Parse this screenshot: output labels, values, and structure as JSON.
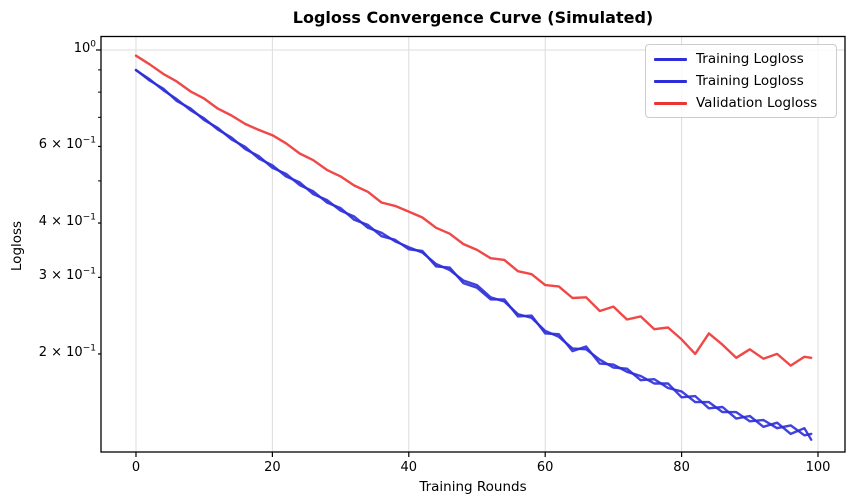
{
  "figure": {
    "title": "Logloss Convergence Curve (Simulated)",
    "xlabel": "Training Rounds",
    "ylabel": "Logloss"
  },
  "chart_data": {
    "type": "line",
    "title": "Logloss Convergence Curve (Simulated)",
    "xlabel": "Training Rounds",
    "ylabel": "Logloss",
    "x_scale": "linear",
    "y_scale": "log",
    "xlim": [
      -5.13,
      103.96
    ],
    "ylim": [
      0.119,
      1.074
    ],
    "xticks": [
      0,
      20,
      40,
      60,
      80,
      100
    ],
    "yticks_labeled": [
      {
        "value": 1.0,
        "prefix": "10",
        "sup": "0",
        "major": true
      },
      {
        "value": 0.6,
        "prefix": "6 × 10",
        "sup": "−1",
        "major": false
      },
      {
        "value": 0.4,
        "prefix": "4 × 10",
        "sup": "−1",
        "major": false
      },
      {
        "value": 0.3,
        "prefix": "3 × 10",
        "sup": "−1",
        "major": false
      },
      {
        "value": 0.2,
        "prefix": "2 × 10",
        "sup": "−1",
        "major": false
      }
    ],
    "yticks_unlabeled": [
      0.9,
      0.8,
      0.7,
      0.5
    ],
    "grid": {
      "vertical_at_xticks": true,
      "horizontal_at": [
        1.0
      ],
      "color": "#dcdcdc"
    },
    "legend_position": "upper right",
    "colors": {
      "training": "#2d2dd9",
      "validation": "#ee3433"
    },
    "x": [
      0,
      2,
      4,
      6,
      8,
      10,
      12,
      14,
      16,
      18,
      20,
      22,
      24,
      26,
      28,
      30,
      32,
      34,
      36,
      38,
      40,
      42,
      44,
      46,
      48,
      50,
      52,
      54,
      56,
      58,
      60,
      62,
      64,
      66,
      68,
      70,
      72,
      74,
      76,
      78,
      80,
      82,
      84,
      86,
      88,
      90,
      92,
      94,
      96,
      98,
      99
    ],
    "series": [
      {
        "name": "Training Logloss",
        "color": "#2d2dd9",
        "values": [
          0.9,
          0.851,
          0.815,
          0.763,
          0.734,
          0.69,
          0.662,
          0.623,
          0.599,
          0.563,
          0.543,
          0.512,
          0.496,
          0.466,
          0.452,
          0.427,
          0.414,
          0.39,
          0.38,
          0.363,
          0.352,
          0.342,
          0.322,
          0.312,
          0.295,
          0.288,
          0.27,
          0.264,
          0.247,
          0.242,
          0.226,
          0.219,
          0.206,
          0.205,
          0.194,
          0.186,
          0.185,
          0.174,
          0.175,
          0.167,
          0.164,
          0.155,
          0.155,
          0.147,
          0.147,
          0.14,
          0.141,
          0.135,
          0.137,
          0.13,
          0.131
        ]
      },
      {
        "name": "Training Logloss",
        "color": "#2d2dd9",
        "values": [
          0.898,
          0.856,
          0.808,
          0.77,
          0.727,
          0.696,
          0.656,
          0.629,
          0.592,
          0.57,
          0.536,
          0.519,
          0.489,
          0.473,
          0.446,
          0.433,
          0.407,
          0.396,
          0.373,
          0.366,
          0.348,
          0.345,
          0.318,
          0.316,
          0.291,
          0.284,
          0.267,
          0.267,
          0.244,
          0.245,
          0.223,
          0.222,
          0.203,
          0.208,
          0.19,
          0.189,
          0.182,
          0.178,
          0.171,
          0.171,
          0.159,
          0.16,
          0.15,
          0.151,
          0.142,
          0.144,
          0.136,
          0.139,
          0.131,
          0.135,
          0.127
        ]
      },
      {
        "name": "Validation Logloss",
        "color": "#ee3433",
        "values": [
          0.97,
          0.927,
          0.881,
          0.846,
          0.803,
          0.773,
          0.733,
          0.707,
          0.676,
          0.655,
          0.637,
          0.61,
          0.578,
          0.558,
          0.53,
          0.512,
          0.488,
          0.472,
          0.446,
          0.438,
          0.425,
          0.412,
          0.39,
          0.378,
          0.358,
          0.347,
          0.332,
          0.329,
          0.31,
          0.305,
          0.288,
          0.286,
          0.269,
          0.27,
          0.251,
          0.257,
          0.24,
          0.244,
          0.228,
          0.23,
          0.216,
          0.2,
          0.223,
          0.21,
          0.196,
          0.205,
          0.195,
          0.2,
          0.188,
          0.197,
          0.196
        ]
      }
    ]
  }
}
